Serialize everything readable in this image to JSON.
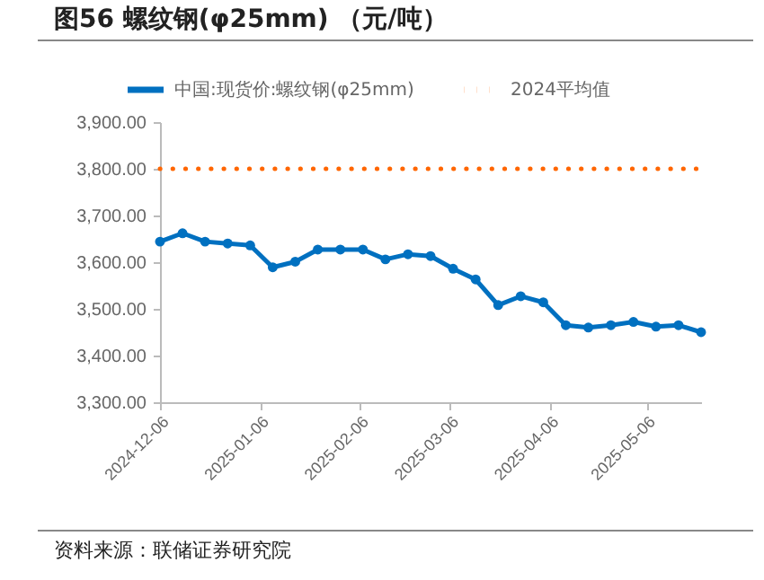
{
  "chart_data": {
    "type": "line",
    "title": "图56 螺纹钢(φ25mm) （元/吨）",
    "annotations": [
      "资料来源：联储证券研究院"
    ],
    "x": [
      "2024-12-06",
      "2024-12-13",
      "2024-12-20",
      "2024-12-27",
      "2025-01-03",
      "2025-01-10",
      "2025-01-17",
      "2025-01-24",
      "2025-01-31",
      "2025-02-07",
      "2025-02-14",
      "2025-02-21",
      "2025-02-28",
      "2025-03-07",
      "2025-03-14",
      "2025-03-21",
      "2025-03-28",
      "2025-04-04",
      "2025-04-11",
      "2025-04-18",
      "2025-04-25",
      "2025-05-02",
      "2025-05-09",
      "2025-05-16",
      "2025-05-23"
    ],
    "series": [
      {
        "name": "中国:现货价:螺纹钢(φ25mm)",
        "color": "#0070c0",
        "marker": "circle",
        "line_style": "solid",
        "values": [
          3644,
          3662,
          3644,
          3640,
          3636,
          3589,
          3601,
          3627,
          3627,
          3627,
          3606,
          3617,
          3613,
          3586,
          3563,
          3508,
          3527,
          3514,
          3465,
          3460,
          3465,
          3472,
          3462,
          3465,
          3450
        ]
      },
      {
        "name": "2024平均值",
        "color": "#ff6600",
        "marker": "none",
        "line_style": "dotted",
        "values": [
          3800,
          3800,
          3800,
          3800,
          3800,
          3800,
          3800,
          3800,
          3800,
          3800,
          3800,
          3800,
          3800,
          3800,
          3800,
          3800,
          3800,
          3800,
          3800,
          3800,
          3800,
          3800,
          3800,
          3800,
          3800
        ]
      }
    ],
    "xlim": [
      "2024-12-06",
      "2025-05-23"
    ],
    "xticks": [
      "2024-12-06",
      "2025-01-06",
      "2025-02-06",
      "2025-03-06",
      "2025-04-06",
      "2025-05-06"
    ],
    "ylim": [
      3300,
      3900
    ],
    "yticks": [
      {
        "value": 3300,
        "label": "3,300.00"
      },
      {
        "value": 3400,
        "label": "3,400.00"
      },
      {
        "value": 3500,
        "label": "3,500.00"
      },
      {
        "value": 3600,
        "label": "3,600.00"
      },
      {
        "value": 3700,
        "label": "3,700.00"
      },
      {
        "value": 3800,
        "label": "3,800.00"
      },
      {
        "value": 3900,
        "label": "3,900.00"
      }
    ],
    "grid": false,
    "legend": "top"
  }
}
